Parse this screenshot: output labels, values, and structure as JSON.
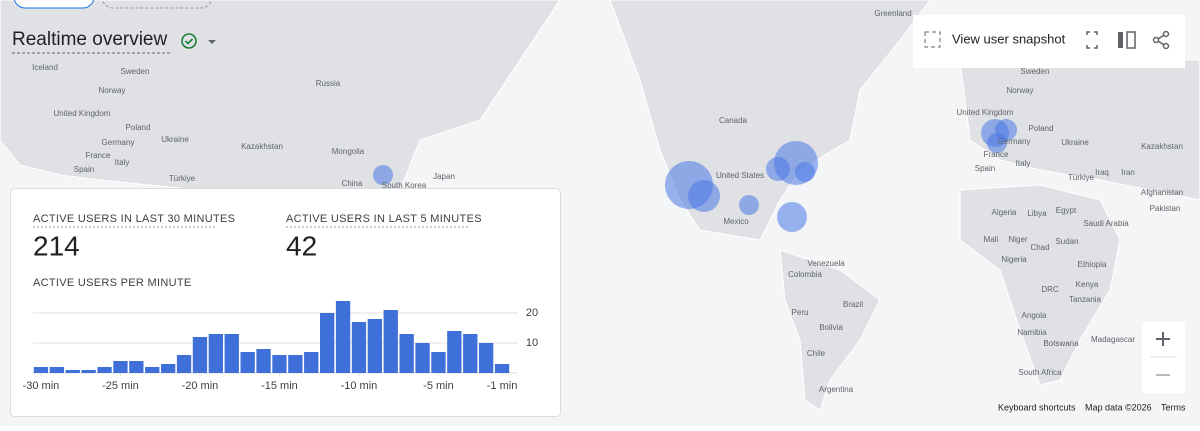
{
  "header": {
    "title": "Realtime overview",
    "view_user_snapshot": "View user snapshot"
  },
  "stats": [
    {
      "label": "ACTIVE USERS IN LAST 30 MINUTES",
      "value": "214"
    },
    {
      "label": "ACTIVE USERS IN LAST 5 MINUTES",
      "value": "42"
    }
  ],
  "chart_data": {
    "type": "bar",
    "title": "ACTIVE USERS PER MINUTE",
    "color": "#3f6fd9",
    "x": [
      -30,
      -29,
      -28,
      -27,
      -26,
      -25,
      -24,
      -23,
      -22,
      -21,
      -20,
      -19,
      -18,
      -17,
      -16,
      -15,
      -14,
      -13,
      -12,
      -11,
      -10,
      -9,
      -8,
      -7,
      -6,
      -5,
      -4,
      -3,
      -2,
      -1
    ],
    "values": [
      2,
      2,
      1,
      1,
      2,
      4,
      4,
      2,
      3,
      6,
      12,
      13,
      13,
      7,
      8,
      6,
      6,
      7,
      20,
      24,
      17,
      18,
      21,
      13,
      10,
      7,
      14,
      13,
      10,
      3
    ],
    "xlim": [
      -30.5,
      -0.5
    ],
    "xticks": [
      {
        "value": -30,
        "label": "-30 min"
      },
      {
        "value": -25,
        "label": "-25 min"
      },
      {
        "value": -20,
        "label": "-20 min"
      },
      {
        "value": -15,
        "label": "-15 min"
      },
      {
        "value": -10,
        "label": "-10 min"
      },
      {
        "value": -5,
        "label": "-5 min"
      },
      {
        "value": -1,
        "label": "-1 min"
      }
    ],
    "ylim": [
      0,
      26
    ],
    "yticks": [
      10,
      20
    ],
    "grid": true
  },
  "map": {
    "labels": [
      "Greenland",
      "Iceland",
      "Sweden",
      "Norway",
      "United Kingdom",
      "Poland",
      "Germany",
      "Ukraine",
      "France",
      "Italy",
      "Spain",
      "Türkiye",
      "Kazakhstan",
      "Russia",
      "Mongolia",
      "China",
      "South Korea",
      "Japan",
      "Canada",
      "United States",
      "Mexico",
      "Venezuela",
      "Colombia",
      "Peru",
      "Brazil",
      "Bolivia",
      "Chile",
      "Argentina",
      "Sweden",
      "Norway",
      "United Kingdom",
      "Poland",
      "Germany",
      "Ukraine",
      "France",
      "Italy",
      "Spain",
      "Türkiye",
      "Kazakhstan",
      "Iraq",
      "Iran",
      "Afghanistan",
      "Pakistan",
      "Algeria",
      "Libya",
      "Egypt",
      "Saudi Arabia",
      "Mali",
      "Niger",
      "Chad",
      "Sudan",
      "Nigeria",
      "Ethiopia",
      "DRC",
      "Kenya",
      "Tanzania",
      "Angola",
      "Namibia",
      "Botswana",
      "Madagascar",
      "South Africa"
    ],
    "footer": [
      "Keyboard shortcuts",
      "Map data ©2026",
      "Terms"
    ]
  }
}
